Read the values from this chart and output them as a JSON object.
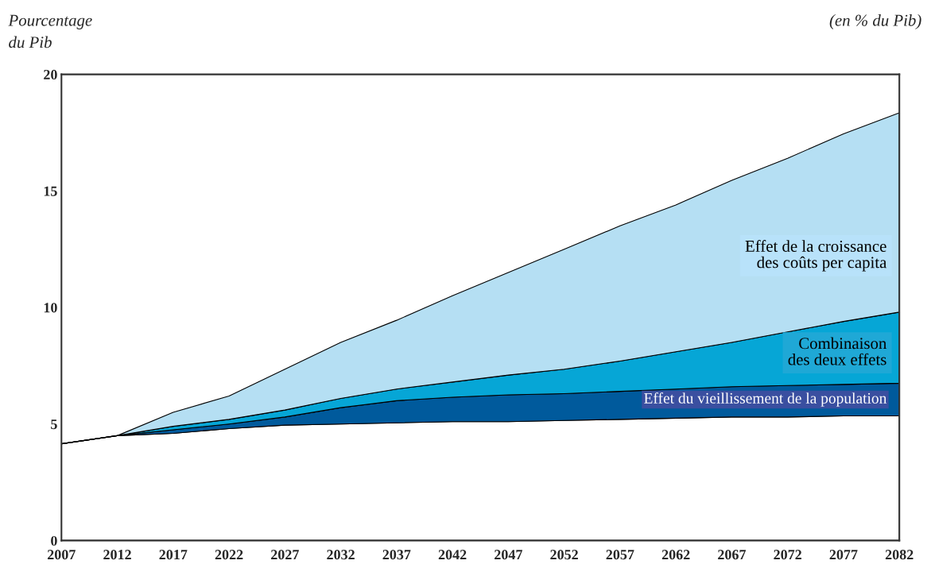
{
  "chart_data": {
    "type": "area",
    "stacked": true,
    "ylabel": "Pourcentage\ndu Pib",
    "annotations": [
      "(en % du Pib)"
    ],
    "x": [
      2007,
      2012,
      2017,
      2022,
      2027,
      2032,
      2037,
      2042,
      2047,
      2052,
      2057,
      2062,
      2067,
      2072,
      2077,
      2082
    ],
    "series": [
      {
        "color": "#ffffff",
        "values": [
          4.15,
          4.5,
          4.6,
          4.8,
          4.95,
          5.0,
          5.05,
          5.1,
          5.1,
          5.15,
          5.2,
          5.25,
          5.3,
          5.3,
          5.35,
          5.35
        ]
      },
      {
        "name": "Effet du vieillissement de la population",
        "color": "#005a9c",
        "values": [
          0,
          0,
          0.15,
          0.2,
          0.35,
          0.7,
          0.95,
          1.05,
          1.15,
          1.15,
          1.2,
          1.25,
          1.3,
          1.35,
          1.35,
          1.4
        ]
      },
      {
        "name": "Combinaison\ndes deux effets",
        "color": "#06a6d6",
        "values": [
          0,
          0,
          0.15,
          0.2,
          0.3,
          0.4,
          0.5,
          0.65,
          0.85,
          1.05,
          1.3,
          1.6,
          1.9,
          2.3,
          2.7,
          3.05
        ]
      },
      {
        "name": "Effet de la croissance\ndes coûts per capita",
        "color": "#b5dff3",
        "values": [
          0,
          0,
          0.6,
          1.0,
          1.75,
          2.4,
          2.95,
          3.7,
          4.4,
          5.15,
          5.8,
          6.3,
          6.95,
          7.45,
          8.05,
          8.55
        ]
      }
    ],
    "xlim": [
      2007,
      2082
    ],
    "xticks": [
      2007,
      2012,
      2017,
      2022,
      2027,
      2032,
      2037,
      2042,
      2047,
      2052,
      2057,
      2062,
      2067,
      2072,
      2077,
      2082
    ],
    "ylim": [
      0,
      20
    ],
    "yticks": [
      0,
      5,
      10,
      15,
      20
    ],
    "grid": false,
    "legend": false
  }
}
